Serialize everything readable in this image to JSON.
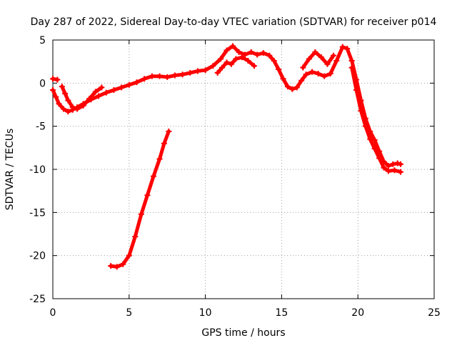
{
  "chart_data": {
    "type": "scatter",
    "title": "Day 287 of 2022, Sidereal Day-to-day VTEC variation (SDTVAR) for receiver p014",
    "xlabel": "GPS time / hours",
    "ylabel": "SDTVAR / TECUs",
    "xlim": [
      0,
      25
    ],
    "ylim": [
      -25,
      5
    ],
    "xticks": [
      "0",
      "5",
      "10",
      "15",
      "20",
      "25"
    ],
    "yticks": [
      "5",
      "0",
      "-5",
      "-10",
      "-15",
      "-20",
      "-25"
    ],
    "grid": true,
    "color": "#ff0000",
    "series": [
      {
        "name": "track-main",
        "points": [
          [
            0.0,
            -0.8
          ],
          [
            0.2,
            -1.6
          ],
          [
            0.4,
            -2.4
          ],
          [
            0.7,
            -3.0
          ],
          [
            1.0,
            -3.3
          ],
          [
            1.3,
            -3.1
          ],
          [
            1.6,
            -2.8
          ],
          [
            2.0,
            -2.4
          ],
          [
            2.5,
            -1.9
          ],
          [
            3.0,
            -1.5
          ],
          [
            3.5,
            -1.1
          ],
          [
            4.0,
            -0.8
          ],
          [
            4.5,
            -0.5
          ],
          [
            5.0,
            -0.2
          ],
          [
            5.5,
            0.1
          ],
          [
            6.0,
            0.5
          ],
          [
            6.5,
            0.8
          ],
          [
            7.0,
            0.8
          ],
          [
            7.5,
            0.7
          ],
          [
            8.0,
            0.9
          ],
          [
            8.5,
            1.0
          ],
          [
            9.0,
            1.2
          ],
          [
            9.5,
            1.4
          ],
          [
            10.0,
            1.5
          ],
          [
            10.5,
            2.0
          ],
          [
            11.0,
            2.8
          ],
          [
            11.4,
            3.8
          ],
          [
            11.8,
            4.3
          ],
          [
            12.2,
            3.6
          ],
          [
            12.6,
            3.3
          ],
          [
            13.0,
            3.6
          ],
          [
            13.4,
            3.3
          ],
          [
            13.8,
            3.5
          ],
          [
            14.2,
            3.2
          ],
          [
            14.5,
            2.6
          ],
          [
            14.8,
            1.6
          ],
          [
            15.1,
            0.5
          ],
          [
            15.4,
            -0.4
          ],
          [
            15.7,
            -0.7
          ],
          [
            16.0,
            -0.5
          ],
          [
            16.3,
            0.3
          ],
          [
            16.6,
            1.0
          ],
          [
            17.0,
            1.3
          ],
          [
            17.4,
            1.1
          ],
          [
            17.8,
            0.8
          ],
          [
            18.2,
            1.1
          ],
          [
            18.6,
            2.6
          ],
          [
            19.0,
            4.2
          ],
          [
            19.3,
            4.0
          ],
          [
            19.6,
            2.6
          ],
          [
            19.9,
            0.4
          ],
          [
            20.2,
            -2.0
          ],
          [
            20.5,
            -4.1
          ],
          [
            20.8,
            -5.6
          ],
          [
            21.1,
            -6.6
          ],
          [
            21.4,
            -7.9
          ],
          [
            21.7,
            -9.1
          ],
          [
            22.0,
            -9.6
          ],
          [
            22.3,
            -9.4
          ],
          [
            22.6,
            -9.3
          ],
          [
            22.8,
            -9.4
          ]
        ]
      },
      {
        "name": "track-lower-branch",
        "points": [
          [
            19.6,
            1.8
          ],
          [
            19.9,
            -0.8
          ],
          [
            20.2,
            -3.2
          ],
          [
            20.5,
            -5.0
          ],
          [
            20.8,
            -6.5
          ],
          [
            21.1,
            -7.6
          ],
          [
            21.4,
            -8.7
          ],
          [
            21.7,
            -9.8
          ],
          [
            22.0,
            -10.2
          ],
          [
            22.4,
            -10.1
          ],
          [
            22.8,
            -10.3
          ]
        ]
      },
      {
        "name": "track-upper-branch",
        "points": [
          [
            10.8,
            1.2
          ],
          [
            11.1,
            1.8
          ],
          [
            11.4,
            2.4
          ],
          [
            11.7,
            2.2
          ],
          [
            12.0,
            2.8
          ],
          [
            12.4,
            3.0
          ],
          [
            12.8,
            2.6
          ],
          [
            13.2,
            2.0
          ]
        ]
      },
      {
        "name": "track-side-branch",
        "points": [
          [
            16.4,
            1.8
          ],
          [
            16.8,
            2.8
          ],
          [
            17.2,
            3.6
          ],
          [
            17.6,
            3.0
          ],
          [
            18.0,
            2.2
          ],
          [
            18.4,
            3.2
          ]
        ]
      },
      {
        "name": "track-left-start",
        "points": [
          [
            0.0,
            0.5
          ],
          [
            0.3,
            0.4
          ]
        ]
      },
      {
        "name": "track-left-arc",
        "points": [
          [
            0.6,
            -0.4
          ],
          [
            0.8,
            -1.2
          ],
          [
            1.0,
            -2.0
          ],
          [
            1.3,
            -2.8
          ],
          [
            1.6,
            -3.0
          ],
          [
            2.0,
            -2.6
          ],
          [
            2.4,
            -1.8
          ],
          [
            2.8,
            -1.0
          ],
          [
            3.2,
            -0.5
          ]
        ]
      },
      {
        "name": "track-steep",
        "points": [
          [
            3.8,
            -21.2
          ],
          [
            4.2,
            -21.3
          ],
          [
            4.6,
            -21.0
          ],
          [
            5.0,
            -20.0
          ],
          [
            5.4,
            -17.8
          ],
          [
            5.8,
            -15.2
          ],
          [
            6.2,
            -13.0
          ],
          [
            6.6,
            -10.8
          ],
          [
            7.0,
            -8.8
          ],
          [
            7.3,
            -7.0
          ],
          [
            7.6,
            -5.6
          ]
        ]
      }
    ]
  }
}
